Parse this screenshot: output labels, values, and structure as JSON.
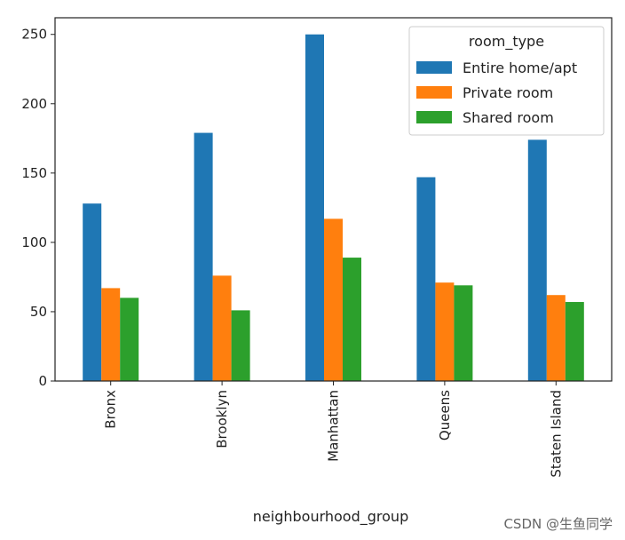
{
  "chart_data": {
    "type": "bar",
    "categories": [
      "Bronx",
      "Brooklyn",
      "Manhattan",
      "Queens",
      "Staten Island"
    ],
    "series": [
      {
        "name": "Entire home/apt",
        "color": "#1f77b4",
        "values": [
          128,
          179,
          250,
          147,
          174
        ]
      },
      {
        "name": "Private room",
        "color": "#ff7f0e",
        "values": [
          67,
          76,
          117,
          71,
          62
        ]
      },
      {
        "name": "Shared room",
        "color": "#2ca02c",
        "values": [
          60,
          51,
          89,
          69,
          57
        ]
      }
    ],
    "title": "",
    "xlabel": "neighbourhood_group",
    "ylabel": "",
    "ylim": [
      0,
      262
    ],
    "yticks": [
      0,
      50,
      100,
      150,
      200,
      250
    ],
    "legend": {
      "title": "room_type",
      "position": "upper-right"
    },
    "grid": false
  },
  "watermark": "CSDN @生鱼同学"
}
